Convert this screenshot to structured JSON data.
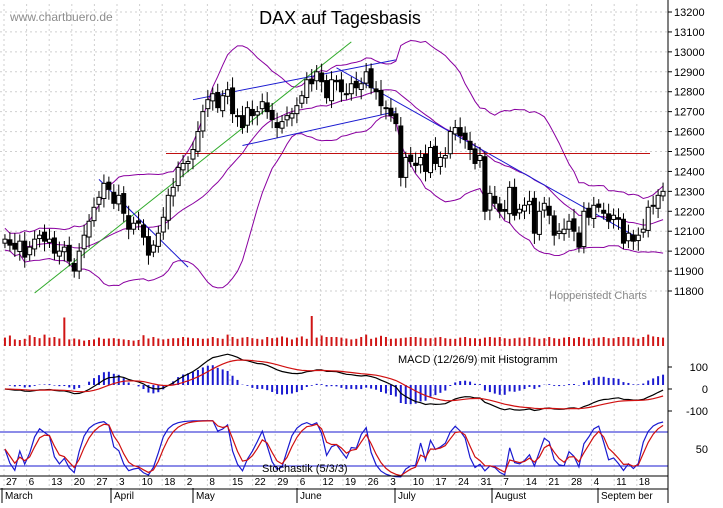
{
  "watermark": "www.chartbuero.de",
  "source": "Hoppenstedt Charts",
  "colors": {
    "grid": "#cfcfcf",
    "band": "#8a00a0",
    "trend_green": "#2faa2a",
    "trend_blue": "#1a1ad0",
    "resistance": "#c01010",
    "volume": "#d01515",
    "macd_line": "#000000",
    "signal_line": "#d01010",
    "histogram": "#1a1ad0",
    "stoch_k": "#1a1ad0",
    "stoch_d": "#d01010"
  },
  "chart_data": [
    {
      "type": "candlestick",
      "title": "DAX auf Tagesbasis",
      "y_ticks": [
        11800,
        11900,
        12000,
        12100,
        12200,
        12300,
        12400,
        12500,
        12600,
        12700,
        12800,
        12900,
        13000,
        13100,
        13200
      ],
      "ylim": [
        11720,
        13235
      ],
      "x_day_labels": [
        "27",
        "6",
        "13",
        "20",
        "27",
        "3",
        "10",
        "18",
        "2",
        "8",
        "15",
        "22",
        "29",
        "6",
        "12",
        "19",
        "26",
        "3",
        "10",
        "17",
        "24",
        "31",
        "7",
        "14",
        "21",
        "28",
        "4",
        "11",
        "18"
      ],
      "x_month_labels": [
        "March",
        "April",
        "May",
        "June",
        "July",
        "August",
        "Septem ber"
      ],
      "resistance": 12490,
      "close": [
        12060,
        12030,
        12010,
        12050,
        11970,
        12020,
        12060,
        12080,
        12050,
        12060,
        11990,
        12000,
        12020,
        11950,
        11900,
        12000,
        12080,
        12150,
        12220,
        12270,
        12340,
        12310,
        12240,
        12280,
        12190,
        12110,
        12140,
        12140,
        12070,
        11980,
        12030,
        12090,
        12170,
        12280,
        12320,
        12420,
        12440,
        12450,
        12510,
        12600,
        12700,
        12760,
        12790,
        12720,
        12780,
        12810,
        12690,
        12680,
        12620,
        12720,
        12680,
        12700,
        12750,
        12700,
        12660,
        12620,
        12650,
        12680,
        12690,
        12730,
        12780,
        12860,
        12840,
        12900,
        12850,
        12770,
        12860,
        12850,
        12800,
        12790,
        12840,
        12820,
        12840,
        12900,
        12820,
        12800,
        12730,
        12720,
        12680,
        12640,
        12370,
        12470,
        12450,
        12430,
        12470,
        12400,
        12520,
        12440,
        12470,
        12480,
        12600,
        12620,
        12580,
        12560,
        12510,
        12440,
        12480,
        12200,
        12290,
        12240,
        12200,
        12200,
        12320,
        12180,
        12210,
        12230,
        12250,
        12090,
        12200,
        12240,
        12180,
        12080,
        12100,
        12110,
        12150,
        12100,
        12020,
        12200,
        12170,
        12230,
        12220,
        12190,
        12150,
        12180,
        12160,
        12040,
        12090,
        12050,
        12080,
        12110,
        12220,
        12230,
        12280,
        12300
      ]
    },
    {
      "type": "bar",
      "title": "Volume",
      "values": [
        0.28,
        0.35,
        0.22,
        0.2,
        0.24,
        0.36,
        0.3,
        0.26,
        0.38,
        0.28,
        0.3,
        0.25,
        0.95,
        0.22,
        0.25,
        0.22,
        0.18,
        0.2,
        0.22,
        0.28,
        0.24,
        0.25,
        0.26,
        0.24,
        0.22,
        0.2,
        0.18,
        0.2,
        0.36,
        0.25,
        0.3,
        0.25,
        0.22,
        0.24,
        0.26,
        0.26,
        0.3,
        0.28,
        0.26,
        0.26,
        0.24,
        0.25,
        0.3,
        0.26,
        0.24,
        0.38,
        0.3,
        0.24,
        0.28,
        0.3,
        0.26,
        0.24,
        0.22,
        0.3,
        0.26,
        0.28,
        0.32,
        0.28,
        0.22,
        0.28,
        0.32,
        0.24,
        1.0,
        0.28,
        0.35,
        0.3,
        0.3,
        0.3,
        0.28,
        0.25,
        0.22,
        0.24,
        0.3,
        0.38,
        0.24,
        0.28,
        0.34,
        0.3,
        0.24,
        0.25,
        0.26,
        0.28,
        0.3,
        0.3,
        0.28,
        0.26,
        0.26,
        0.28,
        0.3,
        0.26,
        0.24,
        0.24,
        0.28,
        0.3,
        0.26,
        0.26,
        0.24,
        0.28,
        0.3,
        0.28,
        0.3,
        0.26,
        0.24,
        0.26,
        0.28,
        0.26,
        0.3,
        0.28,
        0.24,
        0.26,
        0.3,
        0.26,
        0.24,
        0.28,
        0.3,
        0.26,
        0.3,
        0.28,
        0.24,
        0.26,
        0.28,
        0.3,
        0.26,
        0.26,
        0.3,
        0.3,
        0.3,
        0.28,
        0.24,
        0.3,
        0.38,
        0.32,
        0.3,
        0.28
      ]
    },
    {
      "type": "line",
      "title": "MACD (12/26/9) mit Histogramm",
      "y_ticks": [
        100,
        0,
        -100
      ],
      "ylim": [
        -150,
        150
      ],
      "macd_peak": 150,
      "macd_trough": -110
    },
    {
      "type": "line",
      "title": "Stochastik (5/3/3)",
      "y_ticks": [
        50
      ],
      "ylim": [
        0,
        100
      ],
      "levels": [
        80,
        20
      ]
    }
  ]
}
